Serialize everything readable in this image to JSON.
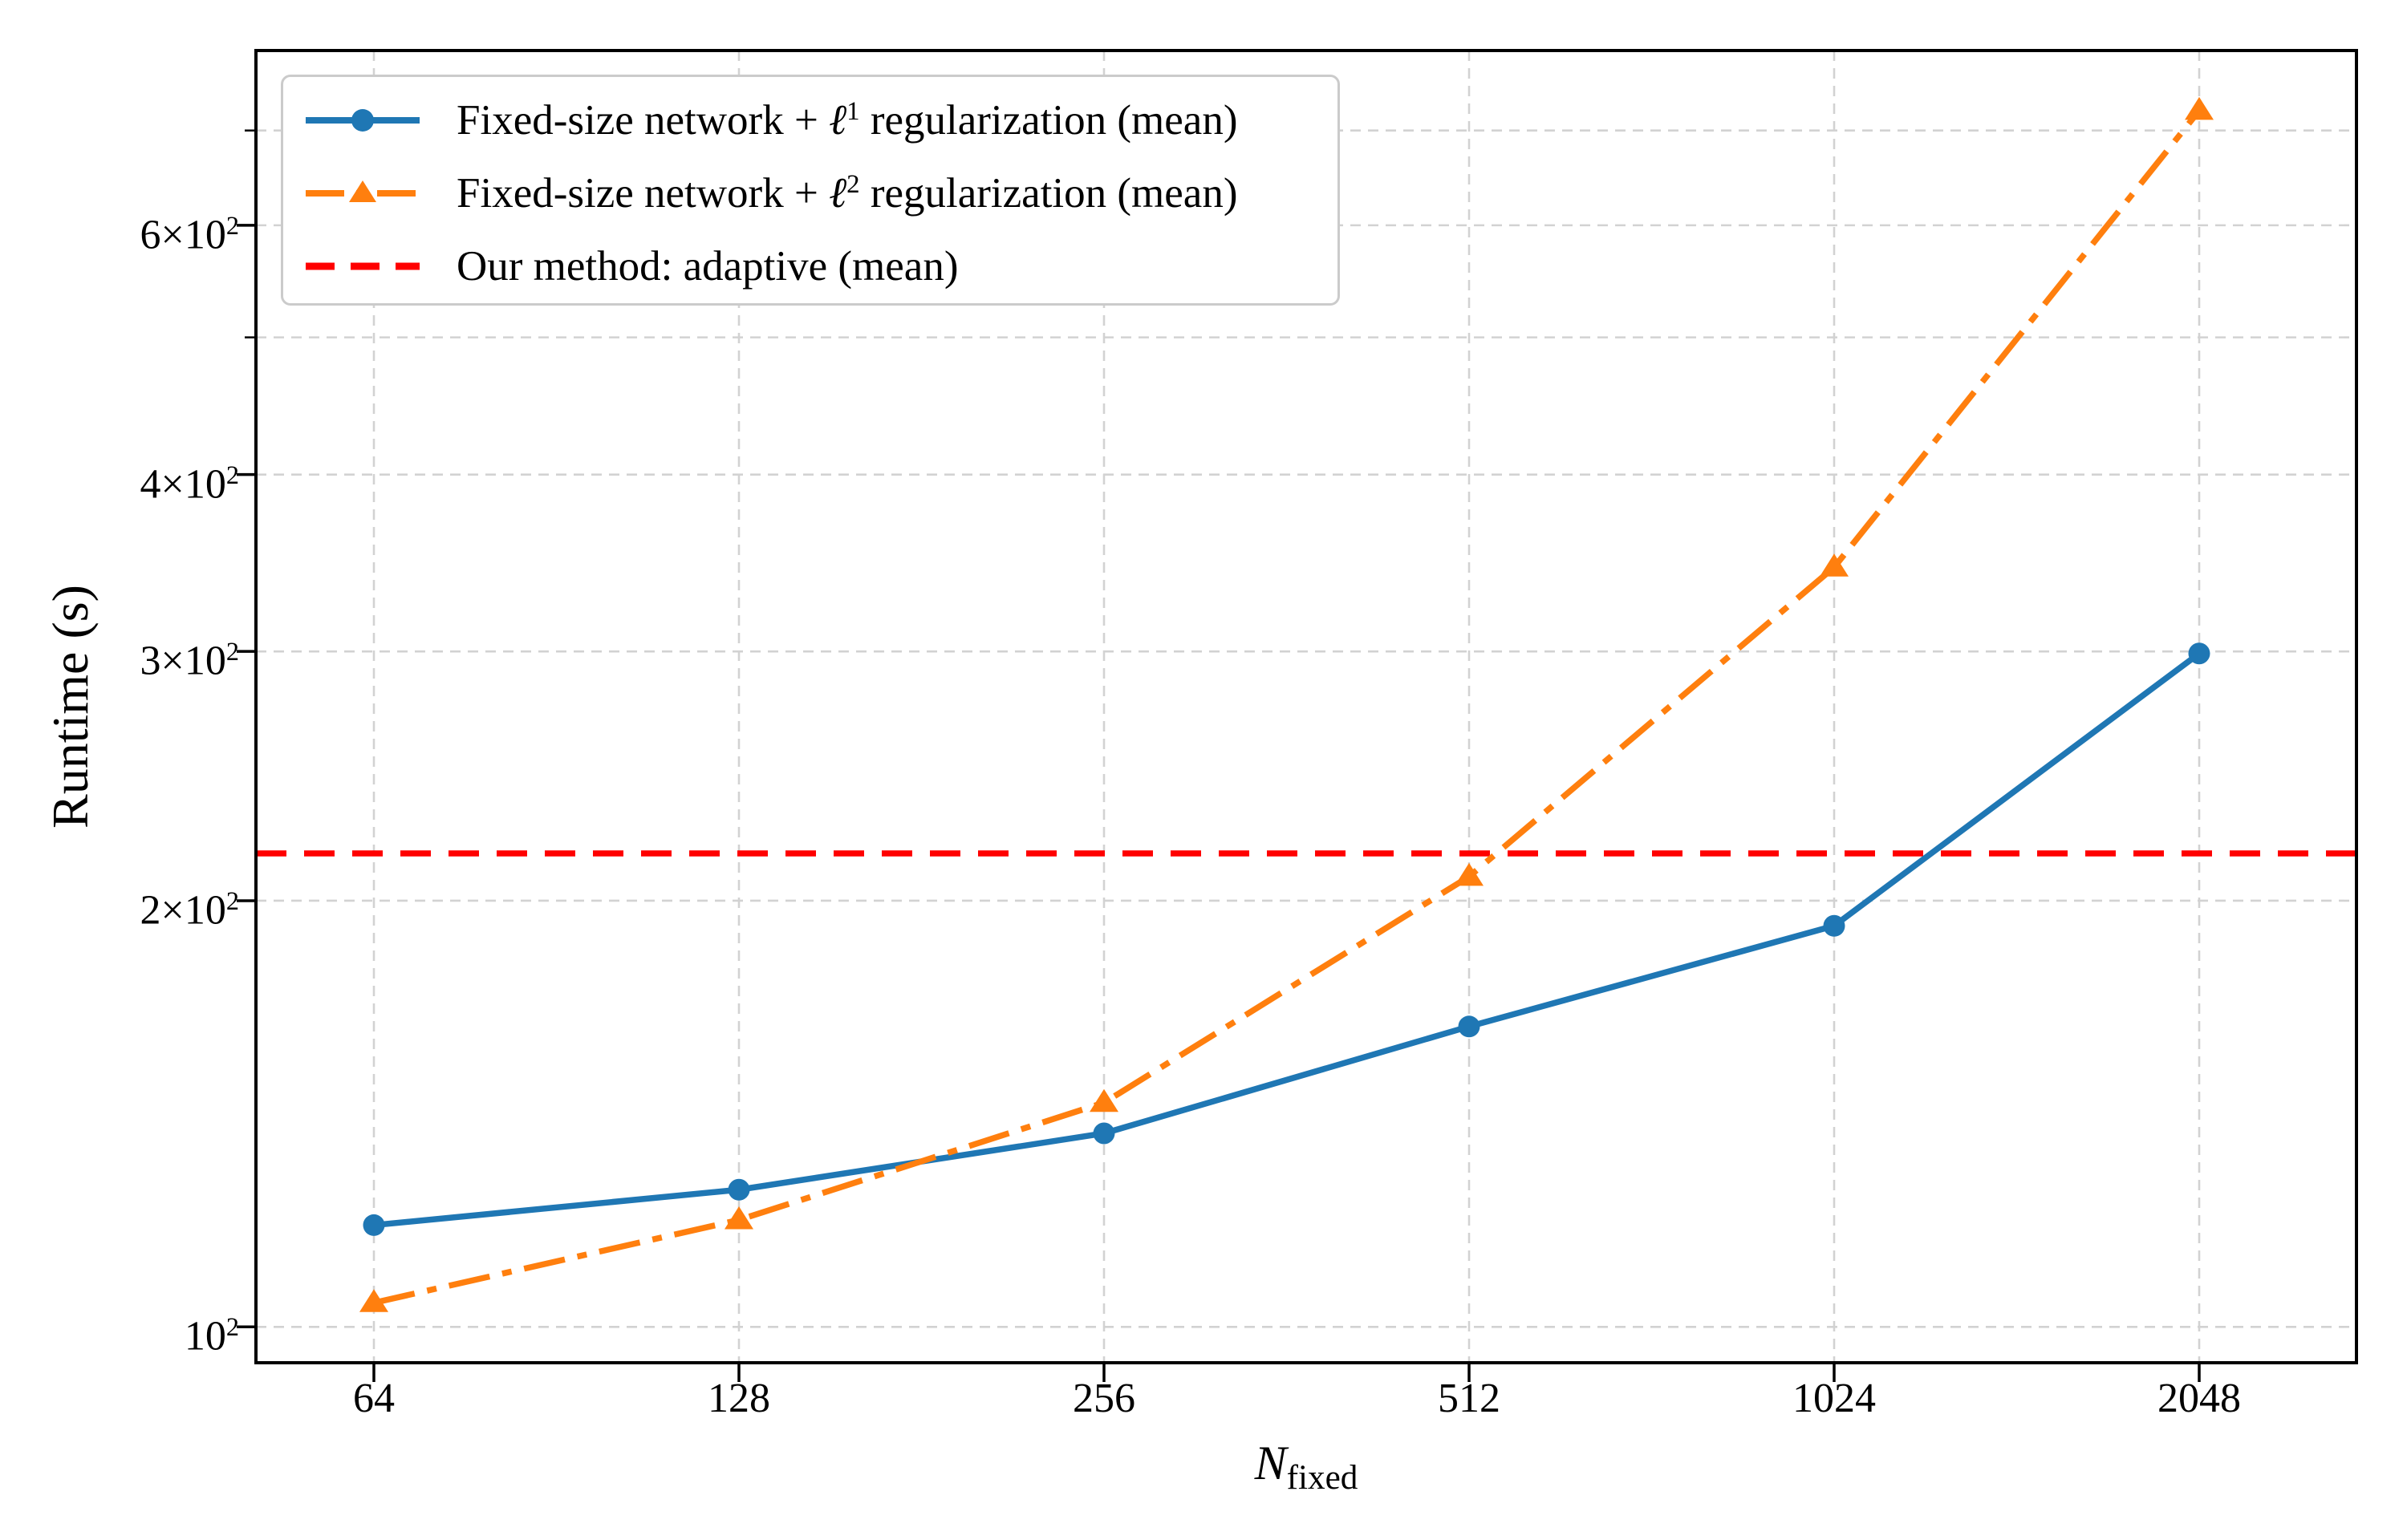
{
  "figure": {
    "background": "#ffffff",
    "ylabel": "Runtime (s)",
    "xlabel": {
      "base": "N",
      "sub": "fixed"
    },
    "legend": {
      "entries": [
        {
          "pre": "Fixed-size network + ",
          "ell": "ℓ",
          "sup": "1",
          "post": " regularization (mean)",
          "color": "#1f77b4",
          "marker": "circle-marker",
          "linestyle": "solid"
        },
        {
          "pre": "Fixed-size network + ",
          "ell": "ℓ",
          "sup": "2",
          "post": " regularization (mean)",
          "color": "#ff7f0e",
          "marker": "triangle-marker",
          "linestyle": "dash-dot"
        },
        {
          "pre": "Our method: adaptive (mean)",
          "ell": "",
          "sup": "",
          "post": "",
          "color": "#ff0000",
          "marker": "none",
          "linestyle": "dashed"
        }
      ]
    }
  },
  "chart_data": {
    "type": "line",
    "title": "",
    "xlabel": "N_fixed",
    "ylabel": "Runtime (s)",
    "xscale": "log2",
    "yscale": "log10",
    "x": [
      64,
      128,
      256,
      512,
      1024,
      2048
    ],
    "series": [
      {
        "name": "Fixed-size network + l^1 regularization (mean)",
        "kind": "line",
        "color": "#1f77b4",
        "marker": "circle",
        "linestyle": "solid",
        "values": [
          118,
          125,
          137,
          163,
          192,
          299
        ]
      },
      {
        "name": "Fixed-size network + l^2 regularization (mean)",
        "kind": "line",
        "color": "#ff7f0e",
        "marker": "triangle",
        "linestyle": "dashdot",
        "values": [
          104,
          119,
          144,
          208,
          344,
          723
        ]
      },
      {
        "name": "Our method: adaptive (mean)",
        "kind": "hline",
        "color": "#ff0000",
        "marker": "none",
        "linestyle": "dashed",
        "value": 216
      }
    ],
    "xlim": [
      51.2,
      2760
    ],
    "ylim": [
      94.3,
      797
    ],
    "xticks": {
      "values": [
        64,
        128,
        256,
        512,
        1024,
        2048
      ],
      "labels": [
        "64",
        "128",
        "256",
        "512",
        "1024",
        "2048"
      ]
    },
    "yticks": {
      "major": [
        {
          "v": 100,
          "base": "10",
          "sup": "2"
        },
        {
          "v": 200,
          "base": "2×10",
          "sup": "2"
        },
        {
          "v": 300,
          "base": "3×10",
          "sup": "2"
        },
        {
          "v": 400,
          "base": "4×10",
          "sup": "2"
        },
        {
          "v": 600,
          "base": "6×10",
          "sup": "2"
        }
      ],
      "minor_unlabeled": [
        500,
        700
      ]
    },
    "grid": {
      "on": true,
      "x_values": [
        64,
        128,
        256,
        512,
        1024,
        2048
      ],
      "y_values": [
        100,
        200,
        300,
        400,
        500,
        600,
        700
      ],
      "color": "#d2d2d2"
    },
    "legend_position": "upper left",
    "frame_color": "#000000"
  }
}
